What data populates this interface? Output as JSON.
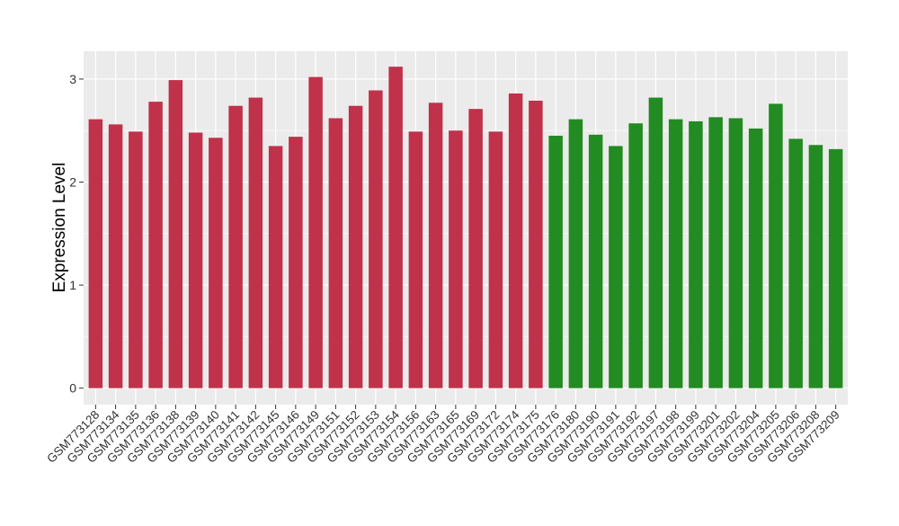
{
  "chart_data": {
    "type": "bar",
    "title": "",
    "xlabel": "",
    "ylabel": "Expression Level",
    "ylim": [
      -0.16,
      3.27
    ],
    "yticks": [
      0,
      1,
      2,
      3
    ],
    "grid": true,
    "legend": "none",
    "categories": [
      "GSM773128",
      "GSM773134",
      "GSM773135",
      "GSM773136",
      "GSM773138",
      "GSM773139",
      "GSM773140",
      "GSM773141",
      "GSM773142",
      "GSM773145",
      "GSM773146",
      "GSM773149",
      "GSM773151",
      "GSM773152",
      "GSM773153",
      "GSM773154",
      "GSM773156",
      "GSM773163",
      "GSM773165",
      "GSM773169",
      "GSM773172",
      "GSM773174",
      "GSM773175",
      "GSM773176",
      "GSM773180",
      "GSM773190",
      "GSM773191",
      "GSM773192",
      "GSM773197",
      "GSM773198",
      "GSM773199",
      "GSM773201",
      "GSM773202",
      "GSM773204",
      "GSM773205",
      "GSM773206",
      "GSM773208",
      "GSM773209"
    ],
    "values": [
      2.61,
      2.56,
      2.49,
      2.78,
      2.99,
      2.48,
      2.43,
      2.74,
      2.82,
      2.35,
      2.44,
      3.02,
      2.62,
      2.74,
      2.89,
      3.12,
      2.49,
      2.77,
      2.5,
      2.71,
      2.49,
      2.86,
      2.79,
      2.45,
      2.61,
      2.46,
      2.35,
      2.57,
      2.82,
      2.61,
      2.59,
      2.63,
      2.62,
      2.52,
      2.76,
      2.42,
      2.36,
      2.32
    ],
    "groups": [
      "a",
      "a",
      "a",
      "a",
      "a",
      "a",
      "a",
      "a",
      "a",
      "a",
      "a",
      "a",
      "a",
      "a",
      "a",
      "a",
      "a",
      "a",
      "a",
      "a",
      "a",
      "a",
      "a",
      "b",
      "b",
      "b",
      "b",
      "b",
      "b",
      "b",
      "b",
      "b",
      "b",
      "b",
      "b",
      "b",
      "b",
      "b"
    ],
    "colors": {
      "a": "#c0314a",
      "b": "#228b22"
    },
    "panel_background": "#ebebeb",
    "gridline_color": "#ffffff"
  }
}
